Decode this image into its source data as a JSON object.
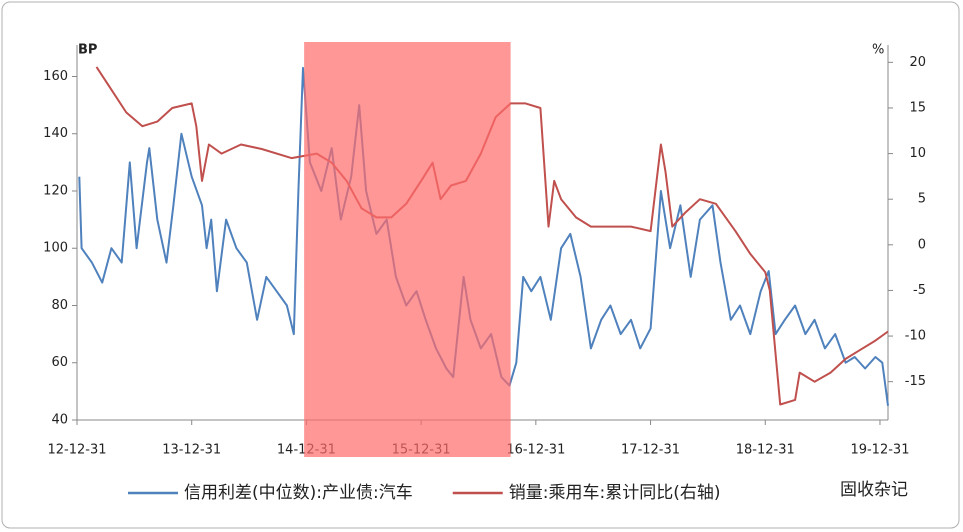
{
  "chart_data": {
    "type": "line",
    "y_label": "BP",
    "y2_label": "%",
    "watermark": "固收杂记",
    "xlim": [
      0,
      7.07
    ],
    "xticks": [
      {
        "value": 0,
        "label": "12-12-31"
      },
      {
        "value": 1,
        "label": "13-12-31"
      },
      {
        "value": 2,
        "label": "14-12-31"
      },
      {
        "value": 3,
        "label": "15-12-31"
      },
      {
        "value": 4,
        "label": "16-12-31"
      },
      {
        "value": 5,
        "label": "17-12-31"
      },
      {
        "value": 6,
        "label": "18-12-31"
      },
      {
        "value": 7,
        "label": "19-12-31"
      }
    ],
    "ylim": [
      40,
      171
    ],
    "yticks": [
      40,
      60,
      80,
      100,
      120,
      140,
      160
    ],
    "y2lim": [
      -19.2,
      21.9
    ],
    "y2ticks": [
      -15,
      -10,
      -5,
      0,
      5,
      10,
      15,
      20
    ],
    "highlight": {
      "x": [
        1.98,
        3.78
      ],
      "color": "#ff6b6b"
    },
    "series": [
      {
        "name": "信用利差(中位数):产业债:汽车",
        "color": "#4f81bd",
        "x": [
          0.02,
          0.04,
          0.13,
          0.22,
          0.3,
          0.39,
          0.46,
          0.52,
          0.61,
          0.63,
          0.7,
          0.78,
          0.84,
          0.91,
          1.0,
          1.09,
          1.13,
          1.17,
          1.22,
          1.3,
          1.39,
          1.48,
          1.57,
          1.65,
          1.74,
          1.83,
          1.89,
          1.93,
          1.97,
          2.03,
          2.13,
          2.22,
          2.3,
          2.39,
          2.46,
          2.52,
          2.61,
          2.7,
          2.78,
          2.87,
          2.96,
          3.04,
          3.13,
          3.22,
          3.28,
          3.37,
          3.43,
          3.52,
          3.61,
          3.7,
          3.77,
          3.83,
          3.89,
          3.96,
          4.04,
          4.13,
          4.22,
          4.3,
          4.39,
          4.48,
          4.57,
          4.65,
          4.74,
          4.83,
          4.91,
          5.0,
          5.09,
          5.17,
          5.26,
          5.35,
          5.43,
          5.54,
          5.61,
          5.7,
          5.78,
          5.87,
          5.96,
          6.03,
          6.09,
          6.17,
          6.26,
          6.35,
          6.43,
          6.52,
          6.61,
          6.7,
          6.78,
          6.87,
          6.96,
          7.02,
          7.07
        ],
        "values": [
          125,
          100,
          95,
          88,
          100,
          95,
          130,
          100,
          130,
          135,
          110,
          95,
          115,
          140,
          125,
          115,
          100,
          110,
          85,
          110,
          100,
          95,
          75,
          90,
          85,
          80,
          70,
          120,
          163,
          130,
          120,
          135,
          110,
          125,
          150,
          120,
          105,
          110,
          90,
          80,
          85,
          75,
          65,
          58,
          55,
          90,
          75,
          65,
          70,
          55,
          52,
          60,
          90,
          85,
          90,
          75,
          100,
          105,
          90,
          65,
          75,
          80,
          70,
          75,
          65,
          72,
          120,
          100,
          115,
          90,
          110,
          115,
          95,
          75,
          80,
          70,
          85,
          92,
          70,
          75,
          80,
          70,
          75,
          65,
          70,
          60,
          62,
          58,
          62,
          60,
          45
        ]
      },
      {
        "name": "销量:乘用车:累计同比(右轴)",
        "color": "#c0504d",
        "axis": "y2",
        "x": [
          0.17,
          0.3,
          0.43,
          0.57,
          0.7,
          0.83,
          1.0,
          1.04,
          1.09,
          1.15,
          1.26,
          1.43,
          1.61,
          1.87,
          2.09,
          2.22,
          2.35,
          2.48,
          2.61,
          2.74,
          2.87,
          3.0,
          3.1,
          3.17,
          3.26,
          3.39,
          3.52,
          3.65,
          3.78,
          3.91,
          4.04,
          4.11,
          4.16,
          4.22,
          4.35,
          4.48,
          4.65,
          4.83,
          5.0,
          5.09,
          5.13,
          5.19,
          5.3,
          5.43,
          5.57,
          5.74,
          5.87,
          6.0,
          6.04,
          6.09,
          6.13,
          6.26,
          6.3,
          6.43,
          6.57,
          6.7,
          6.83,
          6.96,
          7.07
        ],
        "values": [
          19.5,
          17,
          14.5,
          13,
          13.5,
          15,
          15.5,
          13,
          7,
          11,
          10,
          11,
          10.5,
          9.5,
          10,
          9,
          7,
          4,
          3,
          3,
          4.5,
          7,
          9,
          5,
          6.5,
          7,
          10,
          14,
          15.5,
          15.5,
          15,
          2,
          7,
          5,
          3,
          2,
          2,
          2,
          1.5,
          11,
          8,
          2,
          3.5,
          5,
          4.5,
          1.5,
          -1,
          -3,
          -5,
          -12,
          -17.5,
          -17,
          -14,
          -15,
          -14,
          -12.5,
          -11.5,
          -10.5,
          -9.5
        ]
      }
    ]
  }
}
